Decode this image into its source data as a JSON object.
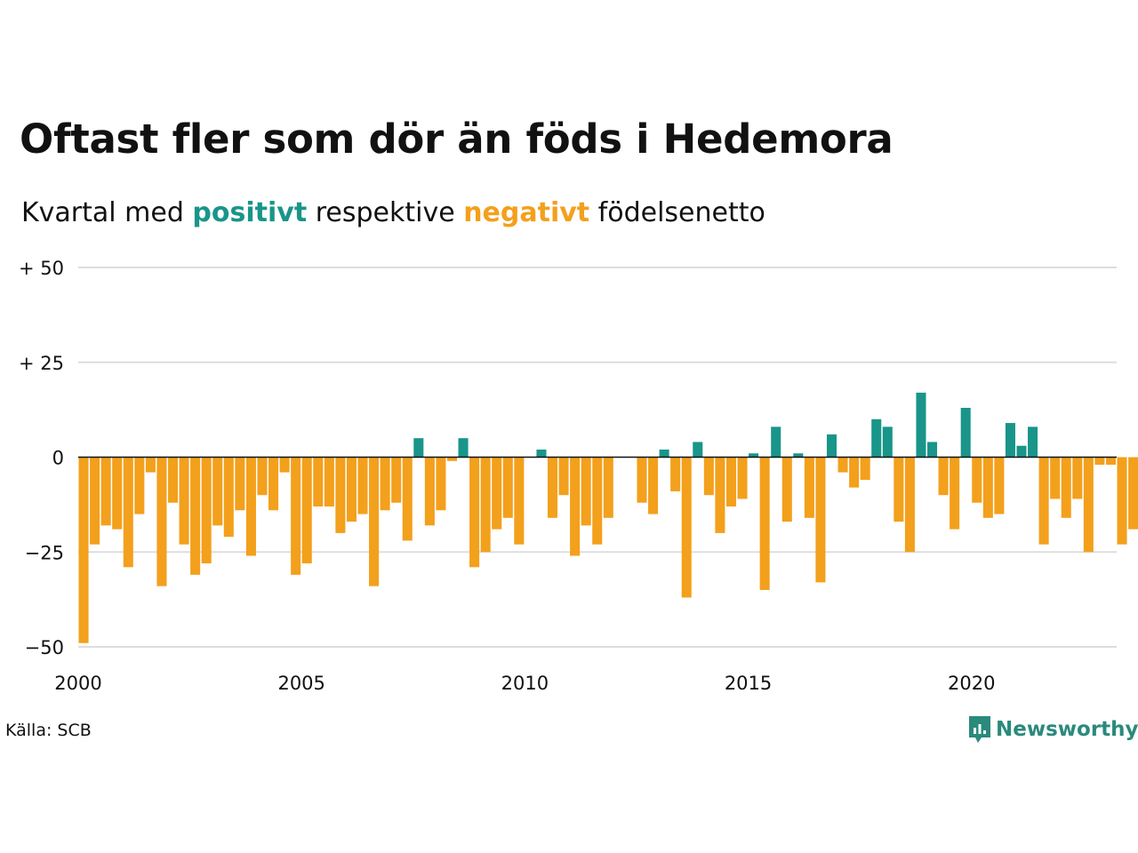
{
  "title": "Oftast fler som dör än föds i Hedemora",
  "subtitle": {
    "prefix": "Kvartal med ",
    "positive": "positivt",
    "middle": " respektive ",
    "negative": "negativt",
    "suffix": " födelsenetto"
  },
  "source": "Källa: SCB",
  "brand": {
    "name": "Newsworthy",
    "icon": "newsworthy-logo-icon"
  },
  "colors": {
    "positive": "#19958a",
    "negative": "#f3a01c",
    "grid": "#dddddd",
    "zero": "#111111",
    "brand": "#2a8a7c"
  },
  "chart_data": {
    "type": "bar",
    "title": "Oftast fler som dör än föds i Hedemora",
    "subtitle": "Kvartal med positivt respektive negativt födelsenetto",
    "xlabel": "",
    "ylabel": "",
    "ylim": [
      -50,
      50
    ],
    "xlim": [
      2000,
      2023.25
    ],
    "grid": true,
    "yticks": [
      {
        "value": 50,
        "label": "+ 50"
      },
      {
        "value": 25,
        "label": "+ 25"
      },
      {
        "value": 0,
        "label": "0"
      },
      {
        "value": -25,
        "label": "−25"
      },
      {
        "value": -50,
        "label": "−50"
      }
    ],
    "xticks": [
      {
        "value": 2000,
        "label": "2000"
      },
      {
        "value": 2005,
        "label": "2005"
      },
      {
        "value": 2010,
        "label": "2010"
      },
      {
        "value": 2015,
        "label": "2015"
      },
      {
        "value": 2020,
        "label": "2020"
      }
    ],
    "start": "2000 Q1",
    "values": [
      -49,
      -23,
      -18,
      -19,
      -29,
      -15,
      -4,
      -34,
      -12,
      -23,
      -31,
      -28,
      -18,
      -21,
      -14,
      -26,
      -10,
      -14,
      -4,
      -31,
      -28,
      -13,
      -13,
      -20,
      -17,
      -15,
      -34,
      -14,
      -12,
      -22,
      5,
      -18,
      -14,
      -1,
      5,
      -29,
      -25,
      -19,
      -16,
      -23,
      0,
      2,
      -16,
      -10,
      -26,
      -18,
      -23,
      -16,
      0,
      0,
      -12,
      -15,
      2,
      -9,
      -37,
      4,
      -10,
      -20,
      -13,
      -11,
      1,
      -35,
      8,
      -17,
      1,
      -16,
      -33,
      6,
      -4,
      -8,
      -6,
      10,
      8,
      -17,
      -25,
      17,
      4,
      -10,
      -19,
      13,
      -12,
      -16,
      -15,
      9,
      3,
      8,
      -23,
      -11,
      -16,
      -11,
      -25,
      -2,
      -2,
      -23,
      -19
    ]
  }
}
